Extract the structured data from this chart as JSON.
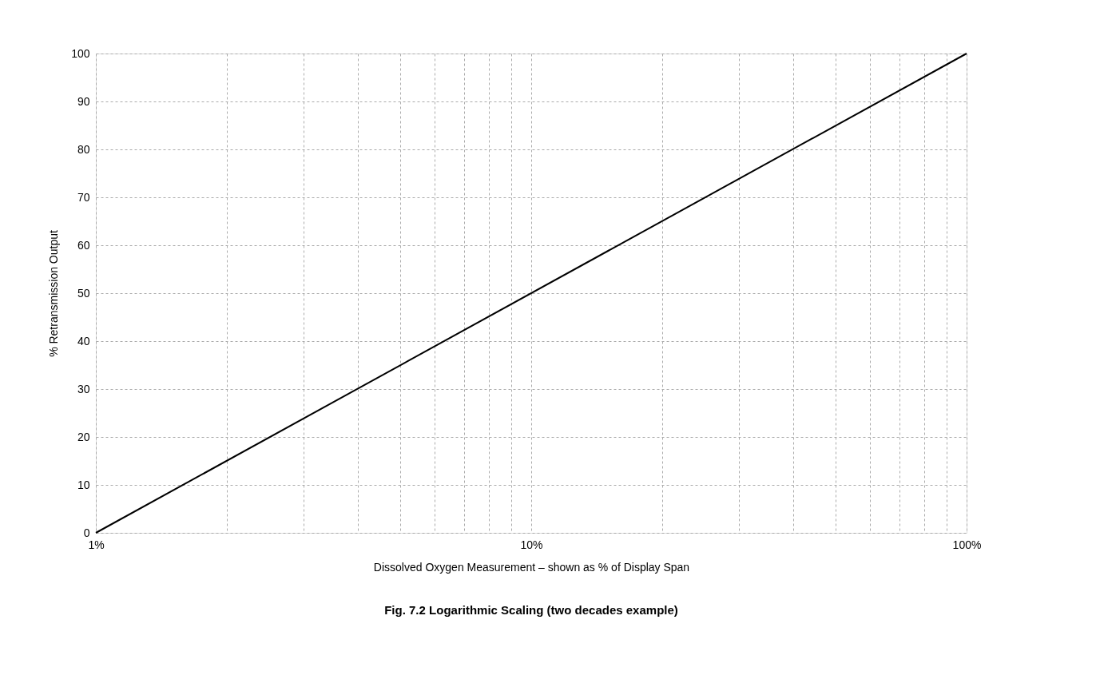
{
  "chart_data": {
    "type": "line",
    "xlabel": "Dissolved Oxygen Measurement – shown as % of Display Span",
    "ylabel": "% Retransmission Output",
    "annotations": [
      "Fig. 7.2 Logarithmic Scaling (two decades example)"
    ],
    "x": [
      1,
      100
    ],
    "series": [
      {
        "color": "#000000",
        "values": [
          0,
          100
        ]
      }
    ],
    "log": "x",
    "xlim": [
      1,
      100
    ],
    "xticks": [
      {
        "value": 1,
        "label": "1%"
      },
      {
        "value": 2,
        "label": null
      },
      {
        "value": 3,
        "label": null
      },
      {
        "value": 4,
        "label": null
      },
      {
        "value": 5,
        "label": null
      },
      {
        "value": 6,
        "label": null
      },
      {
        "value": 7,
        "label": null
      },
      {
        "value": 8,
        "label": null
      },
      {
        "value": 9,
        "label": null
      },
      {
        "value": 10,
        "label": "10%"
      },
      {
        "value": 20,
        "label": null
      },
      {
        "value": 30,
        "label": null
      },
      {
        "value": 40,
        "label": null
      },
      {
        "value": 50,
        "label": null
      },
      {
        "value": 60,
        "label": null
      },
      {
        "value": 70,
        "label": null
      },
      {
        "value": 80,
        "label": null
      },
      {
        "value": 90,
        "label": null
      },
      {
        "value": 100,
        "label": "100%"
      }
    ],
    "ylim": [
      0,
      100
    ],
    "yticks": [
      0,
      10,
      20,
      30,
      40,
      50,
      60,
      70,
      80,
      90,
      100
    ],
    "grid": true,
    "marker": "none",
    "line_style": "solid"
  }
}
